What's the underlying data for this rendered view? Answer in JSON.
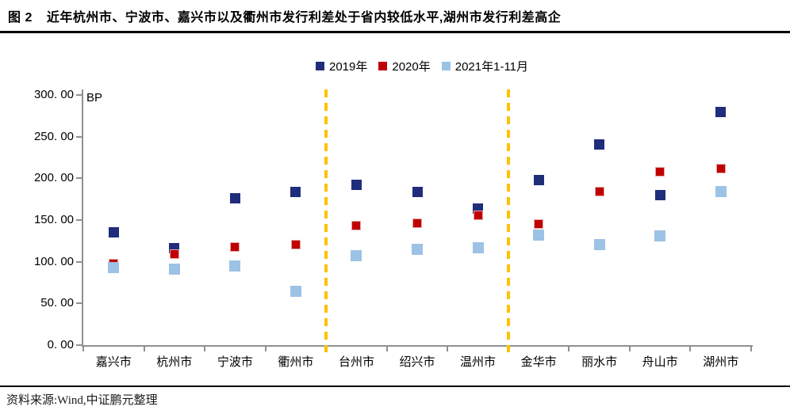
{
  "title": {
    "prefix": "图 2",
    "text": "近年杭州市、宁波市、嘉兴市以及衢州市发行利差处于省内较低水平,湖州市发行利差高企"
  },
  "source": "资料来源:Wind,中证鹏元整理",
  "colors": {
    "series_2019": "#1F2D7B",
    "series_2020": "#C00000",
    "series_2021": "#9CC2E5",
    "separator_line": "#FFC000",
    "axis_line": "#909090",
    "rule_line": "#000000"
  },
  "chart_data": {
    "type": "scatter",
    "title": "近年杭州市、宁波市、嘉兴市以及衢州市发行利差处于省内较低水平,湖州市发行利差高企",
    "unit_label": "BP",
    "xlabel": "",
    "ylabel": "BP",
    "ylim": [
      0,
      300
    ],
    "grid": false,
    "legend_position": "top-center",
    "categories": [
      "嘉兴市",
      "杭州市",
      "宁波市",
      "衢州市",
      "台州市",
      "绍兴市",
      "温州市",
      "金华市",
      "丽水市",
      "舟山市",
      "湖州市"
    ],
    "series": [
      {
        "name": "2019年",
        "color": "#1F2D7B",
        "marker_size": 13,
        "values": [
          135,
          116,
          176,
          184,
          192,
          184,
          164,
          198,
          241,
          180,
          280
        ]
      },
      {
        "name": "2020年",
        "color": "#C00000",
        "marker_size": 12,
        "values": [
          98,
          109,
          118,
          121,
          143,
          146,
          156,
          145,
          184,
          208,
          212
        ]
      },
      {
        "name": "2021年1-11月",
        "color": "#9CC2E5",
        "marker_size": 14,
        "values": [
          93,
          91,
          95,
          65,
          107,
          115,
          117,
          132,
          121,
          131,
          184
        ]
      }
    ],
    "yticks": [
      {
        "value": 300,
        "label": "300. 00"
      },
      {
        "value": 250,
        "label": "250. 00"
      },
      {
        "value": 200,
        "label": "200. 00"
      },
      {
        "value": 150,
        "label": "150. 00"
      },
      {
        "value": 100,
        "label": "100. 00"
      },
      {
        "value": 50,
        "label": "50. 00"
      },
      {
        "value": 0,
        "label": "0. 00"
      }
    ],
    "separator_boundaries": [
      4,
      7
    ],
    "separator_color": "#FFC000"
  }
}
